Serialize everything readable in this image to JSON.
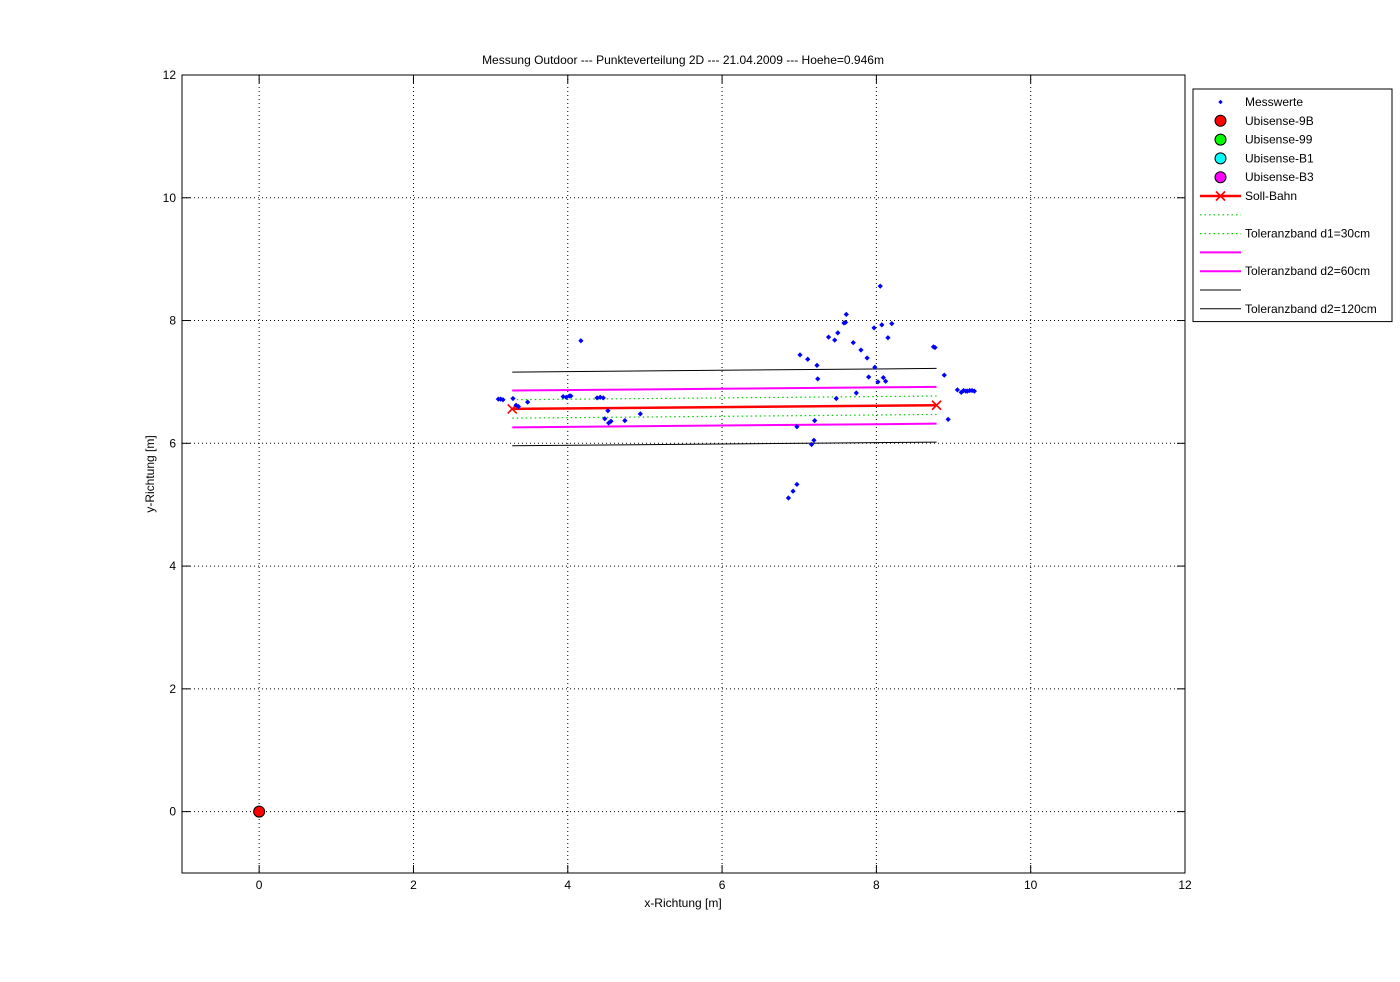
{
  "chart_data": {
    "type": "scatter",
    "title": "Messung Outdoor  --- Punkteverteilung 2D --- 21.04.2009 --- Hoehe=0.946m",
    "xlabel": "x-Richtung [m]",
    "ylabel": "y-Richtung [m]",
    "xlim": [
      -1,
      12
    ],
    "ylim": [
      -1,
      12
    ],
    "xticks": [
      0,
      2,
      4,
      6,
      8,
      10,
      12
    ],
    "yticks": [
      0,
      2,
      4,
      6,
      8,
      10,
      12
    ],
    "grid": true,
    "legend_position": "outside-top-right",
    "colors": {
      "messwerte": "#0000ff",
      "ubisense_9b": "#ff0000",
      "ubisense_99": "#00ff00",
      "ubisense_b1": "#00ffff",
      "ubisense_b3": "#ff00ff",
      "soll_bahn": "#ff0000",
      "tol_d1": "#00cc00",
      "tol_d2_60": "#ff00ff",
      "tol_d2_120": "#000000"
    },
    "legend": [
      {
        "key": "messwerte",
        "label": "Messwerte",
        "style": "point"
      },
      {
        "key": "ubisense_9b",
        "label": "Ubisense-9B",
        "style": "circle"
      },
      {
        "key": "ubisense_99",
        "label": "Ubisense-99",
        "style": "circle"
      },
      {
        "key": "ubisense_b1",
        "label": "Ubisense-B1",
        "style": "circle"
      },
      {
        "key": "ubisense_b3",
        "label": "Ubisense-B3",
        "style": "circle"
      },
      {
        "key": "soll_bahn",
        "label": "Soll-Bahn",
        "style": "line-x"
      },
      {
        "key": "tol_d1",
        "label": "",
        "style": "dotted"
      },
      {
        "key": "tol_d1",
        "label": "Toleranzband d1=30cm",
        "style": "dotted"
      },
      {
        "key": "tol_d2_60",
        "label": "",
        "style": "solid-thick"
      },
      {
        "key": "tol_d2_60",
        "label": "Toleranzband d2=60cm",
        "style": "solid-thick"
      },
      {
        "key": "tol_d2_120",
        "label": "",
        "style": "solid-thin"
      },
      {
        "key": "tol_d2_120",
        "label": "Toleranzband d2=120cm",
        "style": "solid-thin"
      }
    ],
    "soll_bahn": [
      [
        3.28,
        6.56
      ],
      [
        8.78,
        6.62
      ]
    ],
    "tolerance_lines": [
      {
        "key": "tol_d1",
        "style": "dotted",
        "points": [
          [
            3.28,
            6.71
          ],
          [
            8.78,
            6.77
          ]
        ]
      },
      {
        "key": "tol_d1",
        "style": "dotted",
        "points": [
          [
            3.28,
            6.41
          ],
          [
            8.78,
            6.47
          ]
        ]
      },
      {
        "key": "tol_d2_60",
        "style": "solid-thick",
        "points": [
          [
            3.28,
            6.86
          ],
          [
            8.78,
            6.92
          ]
        ]
      },
      {
        "key": "tol_d2_60",
        "style": "solid-thick",
        "points": [
          [
            3.28,
            6.26
          ],
          [
            8.78,
            6.32
          ]
        ]
      },
      {
        "key": "tol_d2_120",
        "style": "solid-thin",
        "points": [
          [
            3.28,
            7.16
          ],
          [
            8.78,
            7.22
          ]
        ]
      },
      {
        "key": "tol_d2_120",
        "style": "solid-thin",
        "points": [
          [
            3.28,
            5.96
          ],
          [
            8.78,
            6.02
          ]
        ]
      }
    ],
    "stations": [
      {
        "key": "ubisense_9b",
        "x": 0,
        "y": 0
      }
    ],
    "messwerte": [
      [
        3.1,
        6.72
      ],
      [
        3.13,
        6.72
      ],
      [
        3.16,
        6.71
      ],
      [
        3.29,
        6.73
      ],
      [
        3.33,
        6.62
      ],
      [
        3.36,
        6.6
      ],
      [
        3.48,
        6.67
      ],
      [
        3.94,
        6.76
      ],
      [
        3.98,
        6.75
      ],
      [
        4.02,
        6.77
      ],
      [
        4.04,
        6.77
      ],
      [
        4.17,
        7.67
      ],
      [
        4.38,
        6.74
      ],
      [
        4.42,
        6.75
      ],
      [
        4.46,
        6.74
      ],
      [
        4.48,
        6.4
      ],
      [
        4.52,
        6.53
      ],
      [
        4.53,
        6.33
      ],
      [
        4.56,
        6.36
      ],
      [
        4.74,
        6.37
      ],
      [
        4.94,
        6.48
      ],
      [
        6.86,
        5.11
      ],
      [
        6.92,
        5.22
      ],
      [
        6.97,
        5.33
      ],
      [
        6.97,
        6.27
      ],
      [
        7.01,
        7.44
      ],
      [
        7.11,
        7.37
      ],
      [
        7.16,
        5.98
      ],
      [
        7.19,
        6.05
      ],
      [
        7.2,
        6.37
      ],
      [
        7.23,
        7.27
      ],
      [
        7.24,
        7.05
      ],
      [
        7.38,
        7.73
      ],
      [
        7.46,
        7.68
      ],
      [
        7.48,
        6.73
      ],
      [
        7.5,
        7.8
      ],
      [
        7.58,
        7.96
      ],
      [
        7.6,
        7.97
      ],
      [
        7.61,
        8.1
      ],
      [
        7.7,
        7.64
      ],
      [
        7.74,
        6.82
      ],
      [
        7.8,
        7.52
      ],
      [
        7.88,
        7.39
      ],
      [
        7.9,
        7.08
      ],
      [
        7.97,
        7.88
      ],
      [
        7.98,
        7.24
      ],
      [
        8.02,
        7.0
      ],
      [
        8.05,
        8.56
      ],
      [
        8.07,
        7.93
      ],
      [
        8.09,
        7.07
      ],
      [
        8.12,
        7.01
      ],
      [
        8.15,
        7.72
      ],
      [
        8.2,
        7.95
      ],
      [
        8.74,
        7.57
      ],
      [
        8.76,
        7.56
      ],
      [
        8.88,
        7.11
      ],
      [
        8.93,
        6.39
      ],
      [
        9.05,
        6.87
      ],
      [
        9.1,
        6.83
      ],
      [
        9.13,
        6.86
      ],
      [
        9.16,
        6.85
      ],
      [
        9.18,
        6.85
      ],
      [
        9.21,
        6.86
      ],
      [
        9.24,
        6.86
      ],
      [
        9.27,
        6.85
      ]
    ]
  }
}
